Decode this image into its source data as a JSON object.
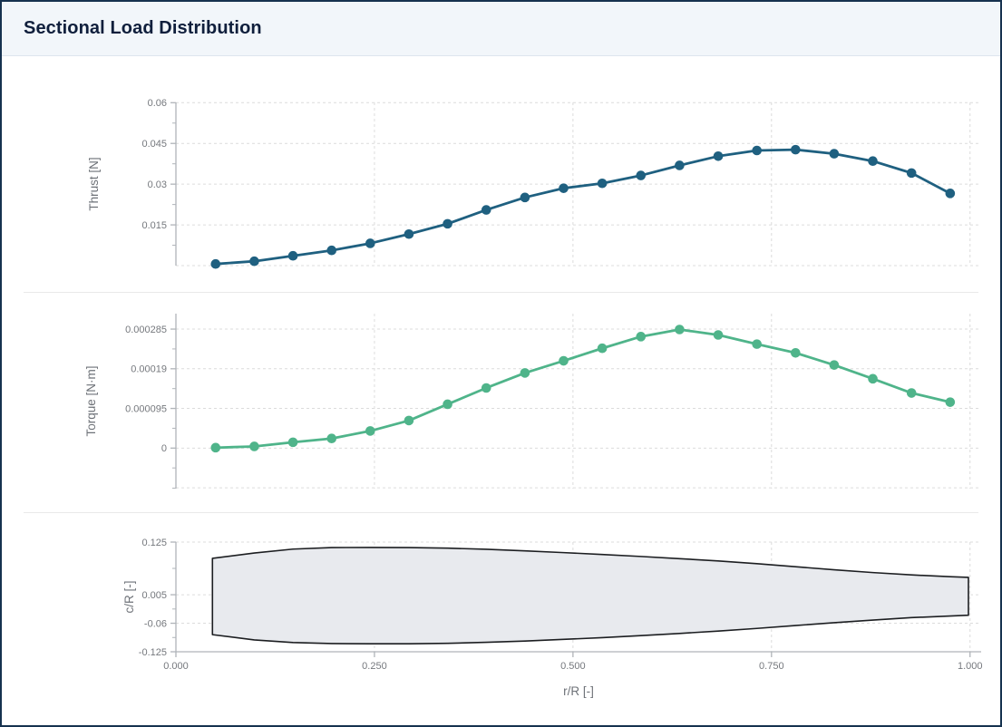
{
  "header": {
    "title": "Sectional Load Distribution"
  },
  "colors": {
    "thrust_line": "#1f6080",
    "torque_line": "#4fb48a",
    "blade_fill": "#e8eaee",
    "blade_stroke": "#1c1e21",
    "grid": "#dcdcdc",
    "axis": "#b0b4b9",
    "tick_text": "#75787d",
    "header_bg": "#f2f6fa",
    "title_text": "#101f3c",
    "border": "#16324f"
  },
  "chart_data": [
    {
      "type": "line",
      "name": "thrust",
      "ylabel": "Thrust [N]",
      "xlabel": "",
      "color": "#1f6080",
      "xlim": [
        0,
        1.014
      ],
      "ylim": [
        0,
        0.0601
      ],
      "xgrid": [
        0.25,
        0.5,
        0.75,
        1.0
      ],
      "ygrid": [
        0,
        0.015,
        0.03,
        0.045,
        0.06
      ],
      "yticks": [
        {
          "v": 0.015,
          "label": "0.015"
        },
        {
          "v": 0.03,
          "label": "0.03"
        },
        {
          "v": 0.045,
          "label": "0.045"
        },
        {
          "v": 0.06,
          "label": "0.06"
        }
      ],
      "x": [
        0.05,
        0.0987,
        0.1474,
        0.1961,
        0.2447,
        0.2934,
        0.3421,
        0.3908,
        0.4395,
        0.4882,
        0.5368,
        0.5855,
        0.6342,
        0.6829,
        0.7316,
        0.7803,
        0.8289,
        0.8776,
        0.9263,
        0.975
      ],
      "y": [
        0.0006,
        0.0016,
        0.0036,
        0.0056,
        0.0082,
        0.0116,
        0.0154,
        0.0205,
        0.0251,
        0.0285,
        0.0303,
        0.0332,
        0.0369,
        0.0403,
        0.0424,
        0.0427,
        0.0412,
        0.0385,
        0.0341,
        0.0266
      ]
    },
    {
      "type": "line",
      "name": "torque",
      "ylabel": "Torque [N·m]",
      "xlabel": "",
      "color": "#4fb48a",
      "xlim": [
        0,
        1.014
      ],
      "ylim": [
        -9.7e-05,
        0.000322
      ],
      "xgrid": [
        0.25,
        0.5,
        0.75,
        1.0
      ],
      "ygrid": [
        -9.5e-05,
        0,
        9.5e-05,
        0.00019,
        0.000285
      ],
      "yticks": [
        {
          "v": 0,
          "label": "0"
        },
        {
          "v": 9.5e-05,
          "label": "0.000095"
        },
        {
          "v": 0.00019,
          "label": "0.00019"
        },
        {
          "v": 0.000285,
          "label": "0.000285"
        }
      ],
      "x": [
        0.05,
        0.0987,
        0.1474,
        0.1961,
        0.2447,
        0.2934,
        0.3421,
        0.3908,
        0.4395,
        0.4882,
        0.5368,
        0.5855,
        0.6342,
        0.6829,
        0.7316,
        0.7803,
        0.8289,
        0.8776,
        0.9263,
        0.975
      ],
      "y": [
        1e-06,
        4e-06,
        1.4e-05,
        2.3e-05,
        4.1e-05,
        6.6e-05,
        0.000105,
        0.000144,
        0.00018,
        0.000209,
        0.000239,
        0.000267,
        0.000284,
        0.000271,
        0.000249,
        0.000228,
        0.000199,
        0.000166,
        0.000132,
        0.00011
      ]
    },
    {
      "type": "area",
      "name": "blade-planform",
      "ylabel": "c/R [-]",
      "xlabel": "r/R [-]",
      "fill": "#e8eaee",
      "stroke": "#1c1e21",
      "xlim": [
        0,
        1.014
      ],
      "ylim": [
        -0.125,
        0.125
      ],
      "xgrid": [
        0.25,
        0.5,
        0.75,
        1.0
      ],
      "ygrid": [
        0.125,
        0.005,
        -0.06
      ],
      "yticks": [
        {
          "v": 0.125,
          "label": "0.125"
        },
        {
          "v": 0.005,
          "label": "0.005"
        },
        {
          "v": -0.06,
          "label": "-0.06"
        },
        {
          "v": -0.125,
          "label": "-0.125"
        }
      ],
      "xticks": [
        {
          "v": 0,
          "label": "0.000"
        },
        {
          "v": 0.25,
          "label": "0.250"
        },
        {
          "v": 0.5,
          "label": "0.500"
        },
        {
          "v": 0.75,
          "label": "0.750"
        },
        {
          "v": 1.0,
          "label": "1.000"
        }
      ],
      "outline": {
        "r": [
          0.046,
          0.0987,
          0.1474,
          0.1961,
          0.2447,
          0.2934,
          0.3421,
          0.3908,
          0.4395,
          0.4882,
          0.5368,
          0.5855,
          0.6342,
          0.6829,
          0.7316,
          0.7803,
          0.8289,
          0.8776,
          0.9263,
          0.975,
          0.998
        ],
        "upper": [
          0.088,
          0.1,
          0.109,
          0.1125,
          0.1128,
          0.1125,
          0.1112,
          0.1085,
          0.105,
          0.101,
          0.0968,
          0.0922,
          0.0872,
          0.082,
          0.0758,
          0.0688,
          0.0618,
          0.0555,
          0.0502,
          0.046,
          0.0445
        ],
        "lower": [
          -0.086,
          -0.098,
          -0.104,
          -0.1063,
          -0.1068,
          -0.1068,
          -0.1057,
          -0.1035,
          -0.1005,
          -0.0968,
          -0.0928,
          -0.0882,
          -0.0832,
          -0.0778,
          -0.0718,
          -0.0652,
          -0.0588,
          -0.0528,
          -0.0472,
          -0.0435,
          -0.0418
        ]
      }
    }
  ]
}
